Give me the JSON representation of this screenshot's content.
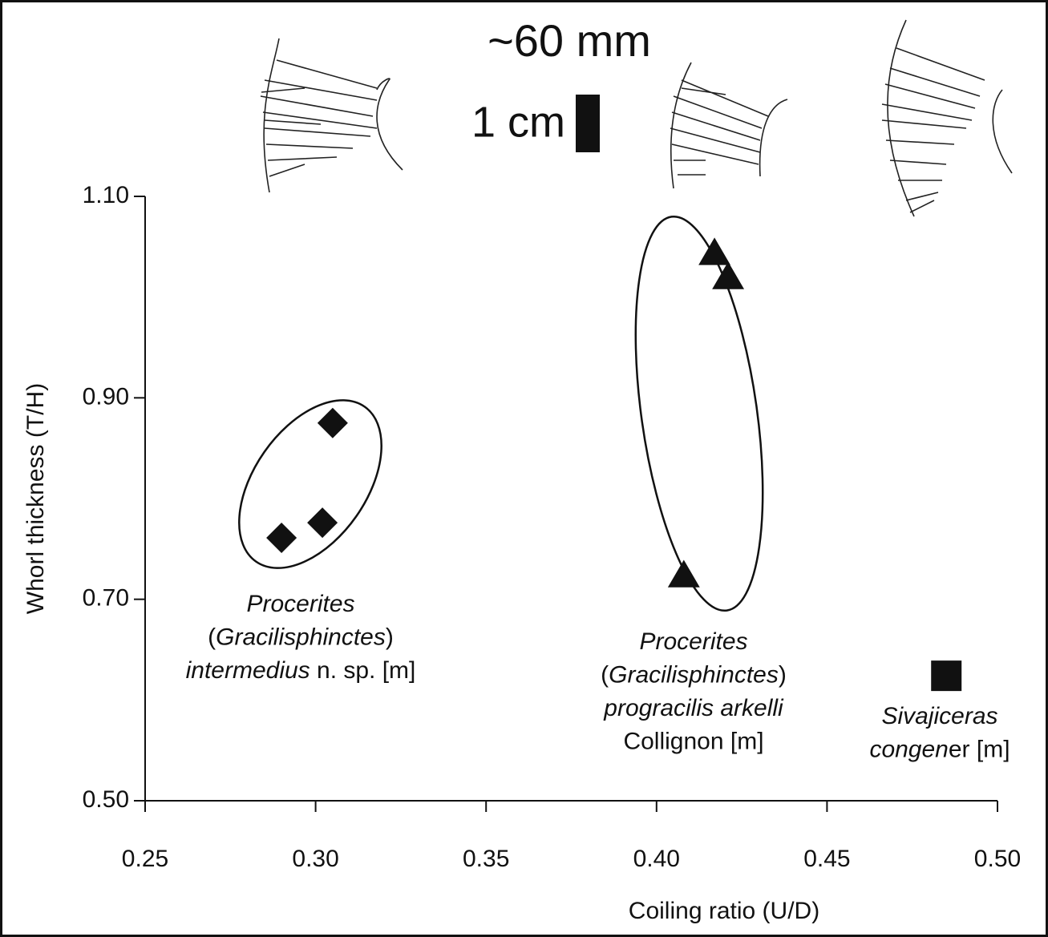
{
  "chart_data": {
    "type": "scatter",
    "scale_text": [
      "~60 mm",
      "1 cm"
    ],
    "x_label": "Coiling ratio (U/D)",
    "y_label": "Whorl thickness (T/H)",
    "xlim": [
      0.25,
      0.5
    ],
    "ylim": [
      0.5,
      1.1
    ],
    "xticks": [
      {
        "value": 0.25,
        "label": "0.25"
      },
      {
        "value": 0.3,
        "label": "0.30"
      },
      {
        "value": 0.35,
        "label": "0.35"
      },
      {
        "value": 0.4,
        "label": "0.40"
      },
      {
        "value": 0.45,
        "label": "0.45"
      },
      {
        "value": 0.5,
        "label": "0.50"
      }
    ],
    "yticks": [
      {
        "value": 0.5,
        "label": "0.50"
      },
      {
        "value": 0.7,
        "label": "0.70"
      },
      {
        "value": 0.9,
        "label": "0.90"
      },
      {
        "value": 1.1,
        "label": "1.10"
      }
    ],
    "series": [
      {
        "marker": "diamond",
        "color": "#111111",
        "name": [
          [
            {
              "text": "Procerites",
              "italic": true
            }
          ],
          [
            {
              "text": "(",
              "italic": false
            },
            {
              "text": "Gracilisphinctes",
              "italic": true
            },
            {
              "text": ")",
              "italic": false
            }
          ],
          [
            {
              "text": "intermedius",
              "italic": true
            },
            {
              "text": " n. sp. [m]",
              "italic": false
            }
          ]
        ],
        "x": [
          0.29,
          0.302,
          0.305
        ],
        "values": [
          0.761,
          0.776,
          0.875
        ]
      },
      {
        "marker": "triangle",
        "color": "#111111",
        "name": [
          [
            {
              "text": "Procerites",
              "italic": true
            }
          ],
          [
            {
              "text": "(",
              "italic": false
            },
            {
              "text": "Gracilisphinctes",
              "italic": true
            },
            {
              "text": ")",
              "italic": false
            }
          ],
          [
            {
              "text": "progracilis arkelli",
              "italic": true
            }
          ],
          [
            {
              "text": "Collignon [m]",
              "italic": false
            }
          ]
        ],
        "x": [
          0.417,
          0.421,
          0.408
        ],
        "values": [
          1.044,
          1.02,
          0.724
        ]
      },
      {
        "marker": "square",
        "color": "#111111",
        "name": [
          [
            {
              "text": "Sivajiceras",
              "italic": true
            }
          ],
          [
            {
              "text": "congen",
              "italic": true
            },
            {
              "text": "er [m]",
              "italic": false
            }
          ]
        ],
        "x": [
          0.485
        ],
        "values": [
          0.624
        ]
      }
    ]
  }
}
